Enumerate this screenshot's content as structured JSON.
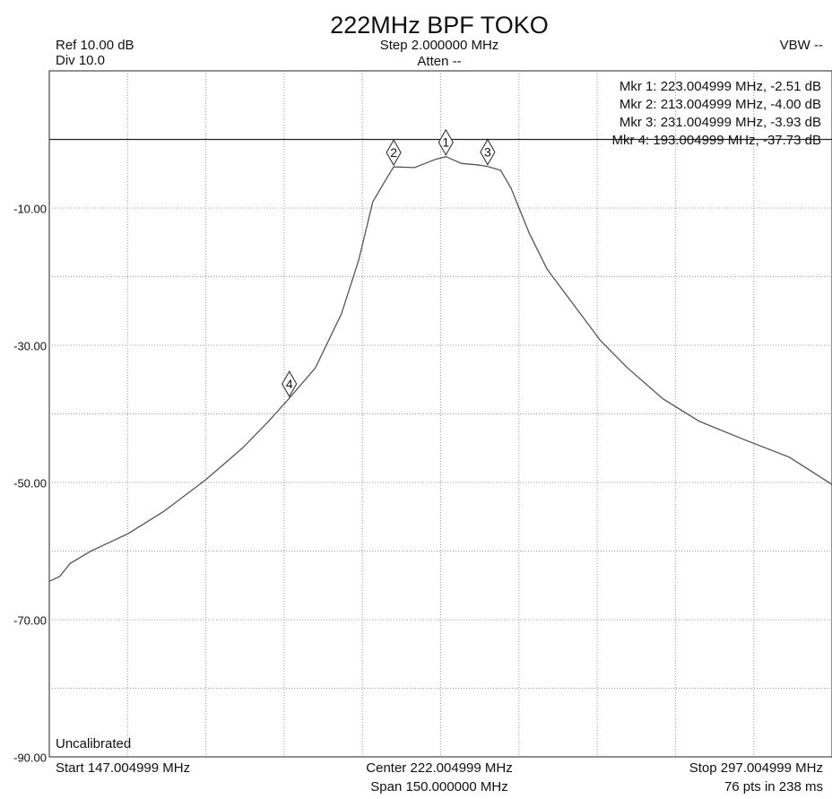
{
  "chart_data": {
    "type": "line",
    "title": "222MHz BPF TOKO",
    "ref_text": "Ref 10.00 dB",
    "div_text": "Div 10.0",
    "step_text": "Step 2.000000 MHz",
    "atten_text": "Atten --",
    "vbw_text": "VBW --",
    "status_text": "Uncalibrated",
    "start_text": "Start 147.004999 MHz",
    "center_text": "Center 222.004999 MHz",
    "stop_text": "Stop 297.004999 MHz",
    "span_text": "Span 150.000000 MHz",
    "points_text": "76 pts in 238 ms",
    "xlim": [
      147.004999,
      297.004999
    ],
    "ylim": [
      -90,
      10
    ],
    "xgrid": [
      162.004999,
      177.004999,
      192.004999,
      207.004999,
      222.004999,
      237.004999,
      252.004999,
      267.004999,
      282.004999
    ],
    "ygrid": [
      0,
      -10,
      -20,
      -30,
      -40,
      -50,
      -60,
      -70,
      -80
    ],
    "yticks": [
      {
        "value": -10,
        "label": "-10.00"
      },
      {
        "value": -30,
        "label": "-30.00"
      },
      {
        "value": -50,
        "label": "-50.00"
      },
      {
        "value": -70,
        "label": "-70.00"
      },
      {
        "value": -90,
        "label": "-90.00"
      }
    ],
    "ref_line": 0,
    "color": "#555555",
    "x": [
      147.004999,
      149,
      151,
      155,
      162,
      169,
      177,
      184,
      189,
      193.004999,
      198,
      203,
      206.3,
      209,
      211,
      213.004999,
      217,
      221,
      223.004999,
      226,
      229,
      231.004999,
      233.5,
      235.5,
      239,
      242.4,
      247.5,
      252.6,
      257.8,
      264.6,
      271.6,
      280,
      288.8,
      297.004999
    ],
    "values": [
      -64.4,
      -63.7,
      -61.8,
      -60,
      -57.5,
      -54.2,
      -49.6,
      -45,
      -41.1,
      -37.73,
      -33.3,
      -25.4,
      -17.6,
      -9.1,
      -6.5,
      -4.0,
      -4.1,
      -2.9,
      -2.51,
      -3.5,
      -3.7,
      -3.93,
      -4.5,
      -7.1,
      -13.7,
      -18.9,
      -24.1,
      -29.3,
      -33.3,
      -37.8,
      -41.1,
      -43.7,
      -46.3,
      -50.3
    ],
    "markers": [
      {
        "label": "1",
        "x": 223.004999,
        "value": -2.51,
        "text": "Mkr 1: 223.004999 MHz, -2.51 dB"
      },
      {
        "label": "2",
        "x": 213.004999,
        "value": -4.0,
        "text": "Mkr 2: 213.004999 MHz, -4.00 dB"
      },
      {
        "label": "3",
        "x": 231.004999,
        "value": -3.93,
        "text": "Mkr 3: 231.004999 MHz, -3.93 dB"
      },
      {
        "label": "4",
        "x": 193.004999,
        "value": -37.73,
        "text": "Mkr 4: 193.004999 MHz, -37.73 dB"
      }
    ]
  }
}
